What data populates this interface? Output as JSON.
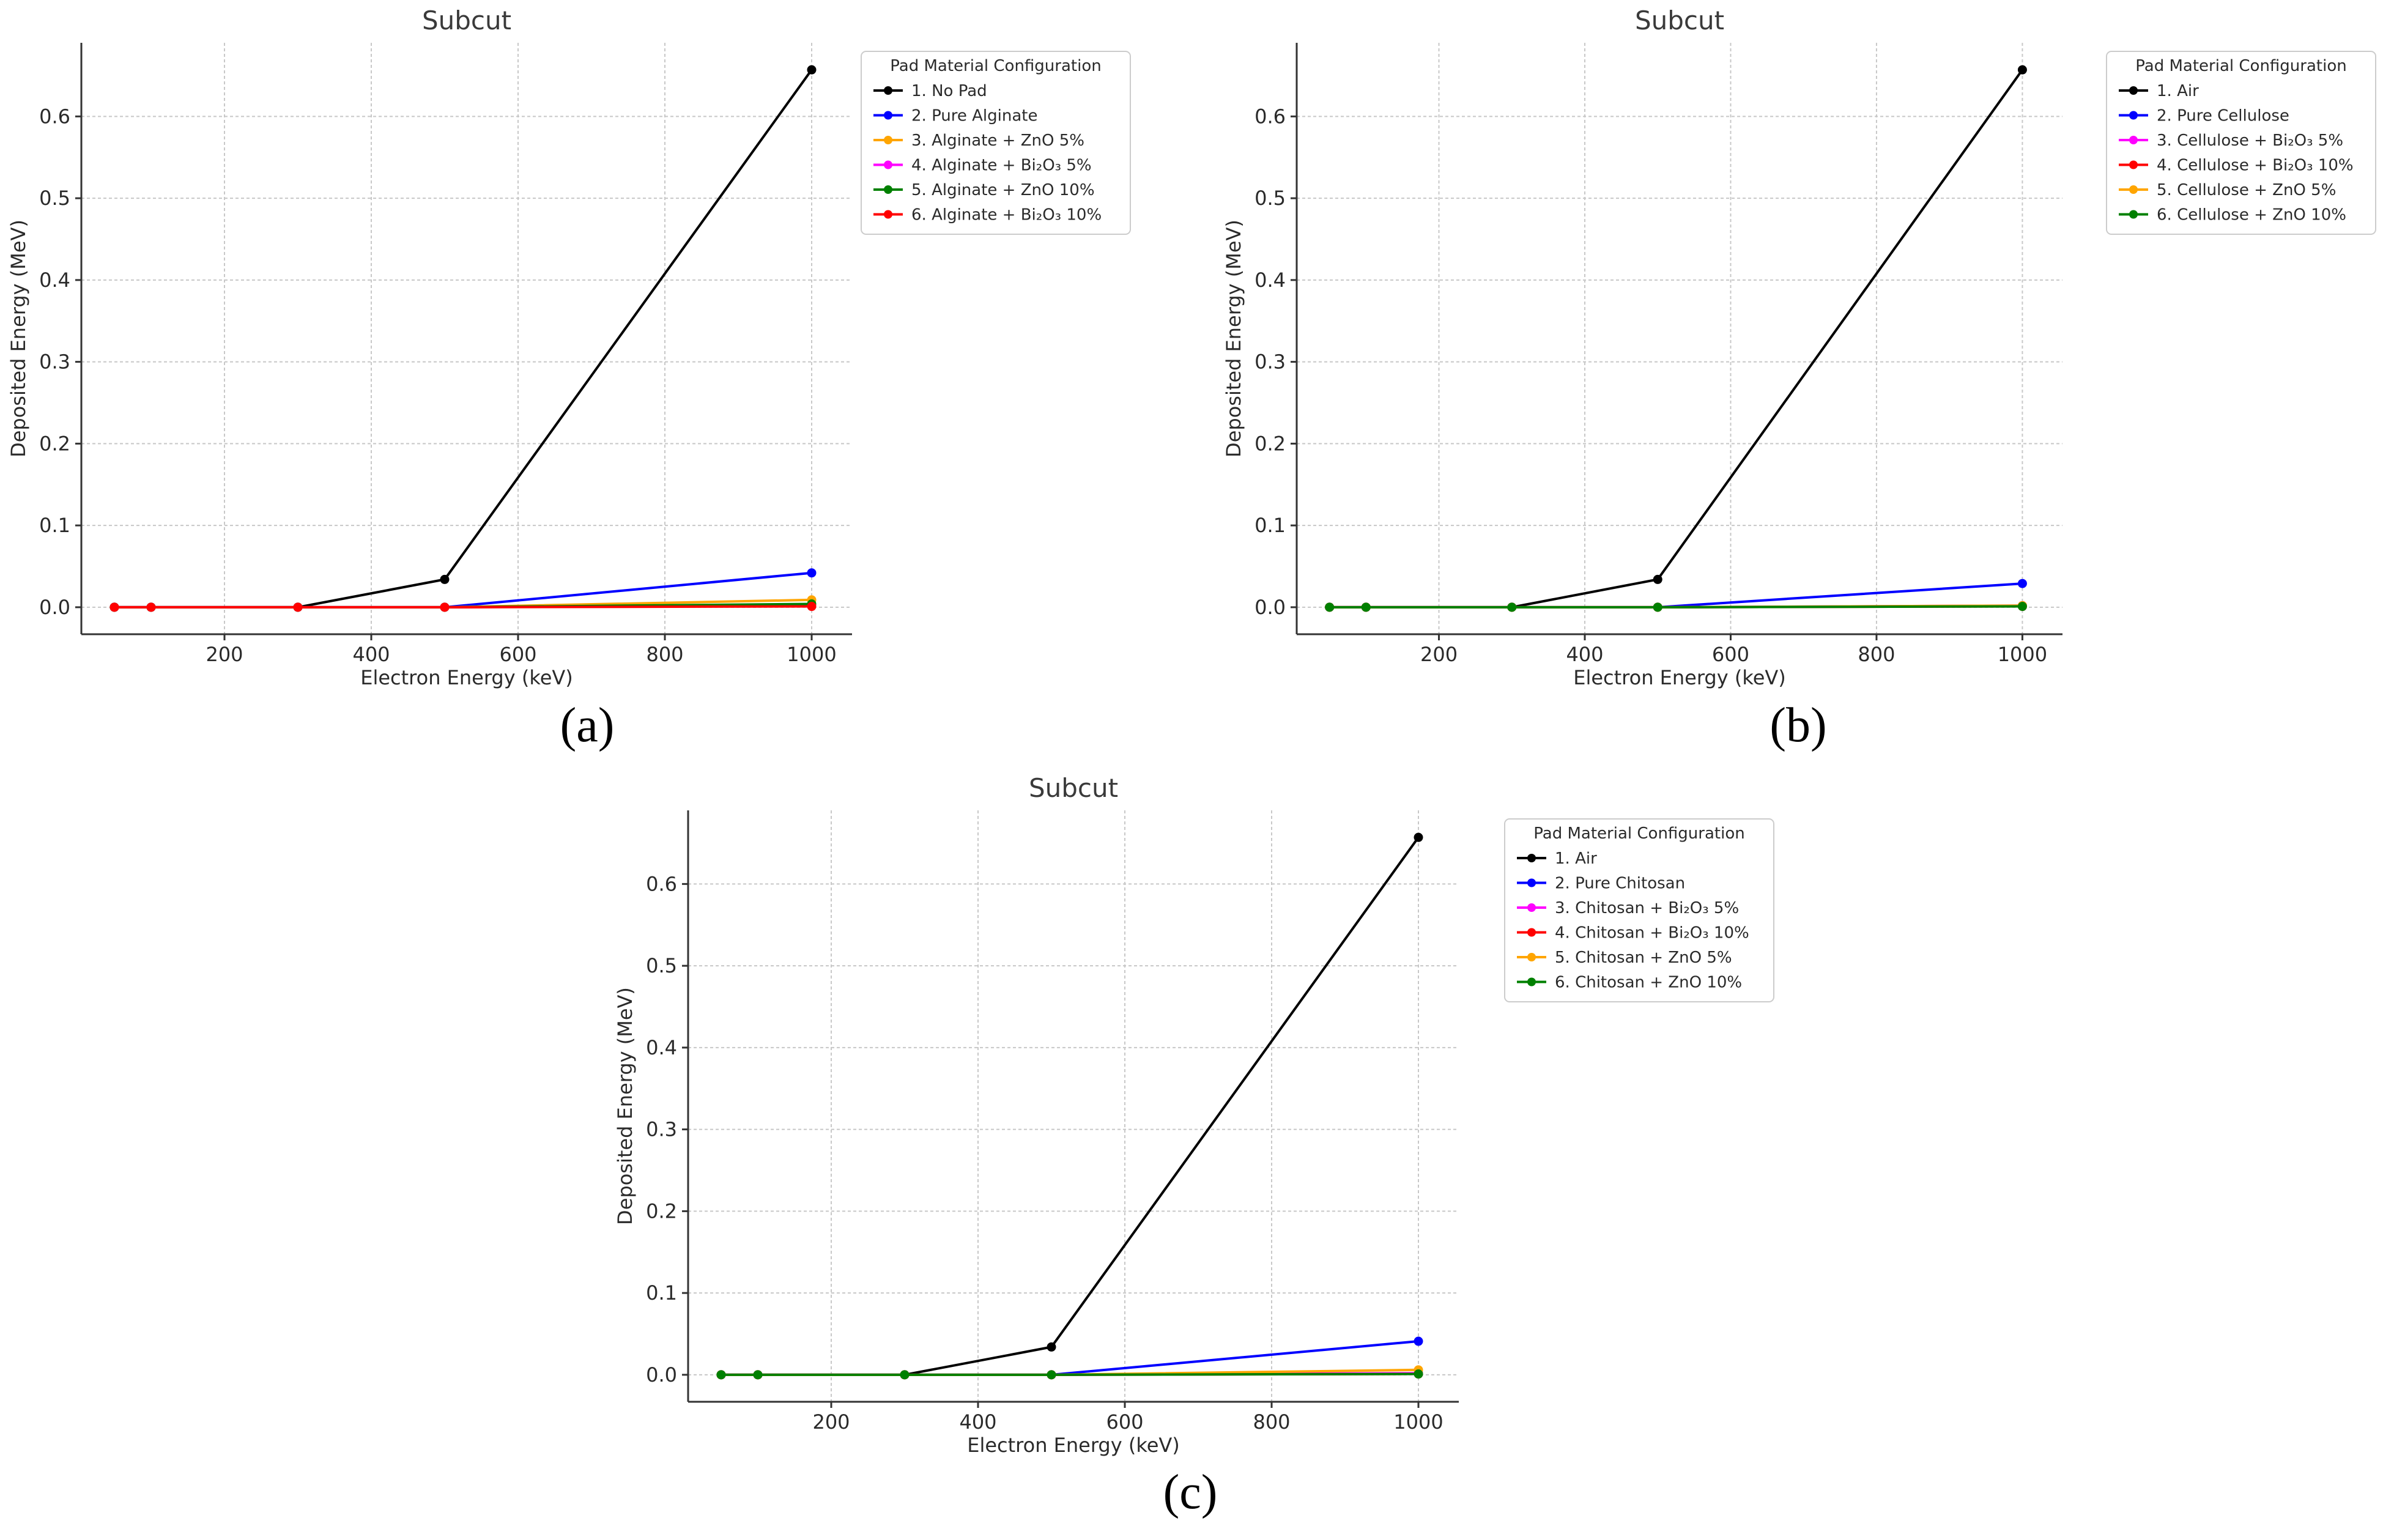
{
  "chart_data": [
    {
      "type": "line",
      "panel_label": "(a)",
      "title": "Subcut",
      "xlabel": "Electron Energy (keV)",
      "ylabel": "Deposited Energy (MeV)",
      "x": [
        50,
        100,
        300,
        500,
        1000
      ],
      "xlim": [
        5,
        1055
      ],
      "ylim": [
        -0.033,
        0.69
      ],
      "xticks": [
        "200",
        "400",
        "600",
        "800",
        "1000"
      ],
      "yticks": [
        "0.0",
        "0.1",
        "0.2",
        "0.3",
        "0.4",
        "0.5",
        "0.6"
      ],
      "grid": true,
      "legend_title": "Pad Material Configuration",
      "legend_position": "upper-right-outside",
      "series": [
        {
          "name": "1. No Pad",
          "color": "#000000",
          "values": [
            0,
            0,
            0,
            0.034,
            0.657
          ]
        },
        {
          "name": "2. Pure Alginate",
          "color": "#0000ff",
          "values": [
            0,
            0,
            0,
            0,
            0.042
          ]
        },
        {
          "name": "3. Alginate + ZnO 5%",
          "color": "#ffa500",
          "values": [
            0,
            0,
            0,
            0,
            0.009
          ]
        },
        {
          "name": "4. Alginate + Bi₂O₃ 5%",
          "color": "#ff00ff",
          "values": [
            0,
            0,
            0,
            0,
            0.002
          ]
        },
        {
          "name": "5. Alginate + ZnO 10%",
          "color": "#008000",
          "values": [
            0,
            0,
            0,
            0,
            0.004
          ]
        },
        {
          "name": "6. Alginate + Bi₂O₃ 10%",
          "color": "#ff0000",
          "values": [
            0,
            0,
            0,
            0,
            0.001
          ]
        }
      ]
    },
    {
      "type": "line",
      "panel_label": "(b)",
      "title": "Subcut",
      "xlabel": "Electron Energy (keV)",
      "ylabel": "Deposited Energy (MeV)",
      "x": [
        50,
        100,
        300,
        500,
        1000
      ],
      "xlim": [
        5,
        1055
      ],
      "ylim": [
        -0.033,
        0.69
      ],
      "xticks": [
        "200",
        "400",
        "600",
        "800",
        "1000"
      ],
      "yticks": [
        "0.0",
        "0.1",
        "0.2",
        "0.3",
        "0.4",
        "0.5",
        "0.6"
      ],
      "grid": true,
      "legend_title": "Pad Material Configuration",
      "legend_position": "upper-right-outside",
      "series": [
        {
          "name": "1. Air",
          "color": "#000000",
          "values": [
            0,
            0,
            0,
            0.034,
            0.657
          ]
        },
        {
          "name": "2. Pure Cellulose",
          "color": "#0000ff",
          "values": [
            0,
            0,
            0,
            0,
            0.029
          ]
        },
        {
          "name": "3. Cellulose + Bi₂O₃ 5%",
          "color": "#ff00ff",
          "values": [
            0,
            0,
            0,
            0,
            0.002
          ]
        },
        {
          "name": "4. Cellulose + Bi₂O₃ 10%",
          "color": "#ff0000",
          "values": [
            0,
            0,
            0,
            0,
            0.001
          ]
        },
        {
          "name": "5. Cellulose + ZnO 5%",
          "color": "#ffa500",
          "values": [
            0,
            0,
            0,
            0,
            0.002
          ]
        },
        {
          "name": "6. Cellulose + ZnO 10%",
          "color": "#008000",
          "values": [
            0,
            0,
            0,
            0,
            0.001
          ]
        }
      ]
    },
    {
      "type": "line",
      "panel_label": "(c)",
      "title": "Subcut",
      "xlabel": "Electron Energy (keV)",
      "ylabel": "Deposited Energy (MeV)",
      "x": [
        50,
        100,
        300,
        500,
        1000
      ],
      "xlim": [
        5,
        1055
      ],
      "ylim": [
        -0.033,
        0.69
      ],
      "xticks": [
        "200",
        "400",
        "600",
        "800",
        "1000"
      ],
      "yticks": [
        "0.0",
        "0.1",
        "0.2",
        "0.3",
        "0.4",
        "0.5",
        "0.6"
      ],
      "grid": true,
      "legend_title": "Pad Material Configuration",
      "legend_position": "upper-right-outside",
      "series": [
        {
          "name": "1. Air",
          "color": "#000000",
          "values": [
            0,
            0,
            0,
            0.034,
            0.657
          ]
        },
        {
          "name": "2. Pure Chitosan",
          "color": "#0000ff",
          "values": [
            0,
            0,
            0,
            0,
            0.041
          ]
        },
        {
          "name": "3. Chitosan + Bi₂O₃ 5%",
          "color": "#ff00ff",
          "values": [
            0,
            0,
            0,
            0,
            0.002
          ]
        },
        {
          "name": "4. Chitosan + Bi₂O₃ 10%",
          "color": "#ff0000",
          "values": [
            0,
            0,
            0,
            0,
            0.001
          ]
        },
        {
          "name": "5. Chitosan + ZnO 5%",
          "color": "#ffa500",
          "values": [
            0,
            0,
            0,
            0,
            0.006
          ]
        },
        {
          "name": "6. Chitosan + ZnO 10%",
          "color": "#008000",
          "values": [
            0,
            0,
            0,
            0,
            0.001
          ]
        }
      ]
    }
  ]
}
